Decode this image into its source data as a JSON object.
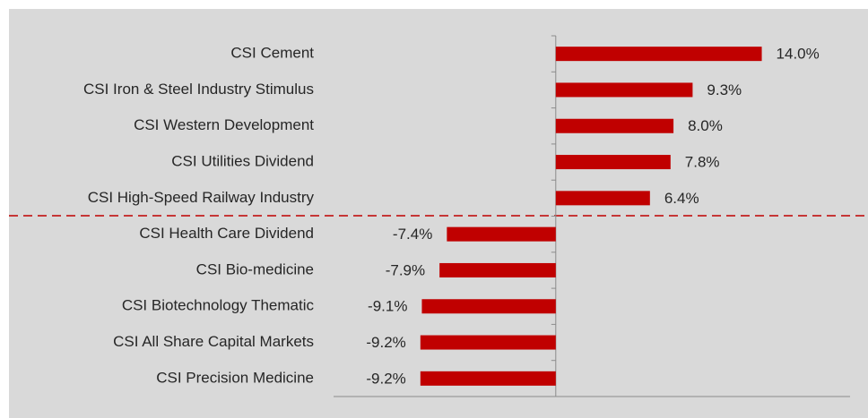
{
  "chart_data": {
    "type": "barh",
    "categories": [
      "CSI Cement",
      "CSI Iron & Steel Industry Stimulus",
      "CSI Western Development",
      "CSI Utilities Dividend",
      "CSI High-Speed Railway Industry",
      "CSI Health Care Dividend",
      "CSI Bio-medicine",
      "CSI Biotechnology Thematic",
      "CSI All Share Capital Markets",
      "CSI Precision Medicine"
    ],
    "values": [
      14.0,
      9.3,
      8.0,
      7.8,
      6.4,
      -7.4,
      -7.9,
      -9.1,
      -9.2,
      -9.2
    ],
    "value_labels": [
      "14.0%",
      "9.3%",
      "8.0%",
      "7.8%",
      "6.4%",
      "-7.4%",
      "-7.9%",
      "-9.1%",
      "-9.2%",
      "-9.2%"
    ],
    "color": "#c00000",
    "xlim": [
      -15.1,
      20
    ]
  }
}
